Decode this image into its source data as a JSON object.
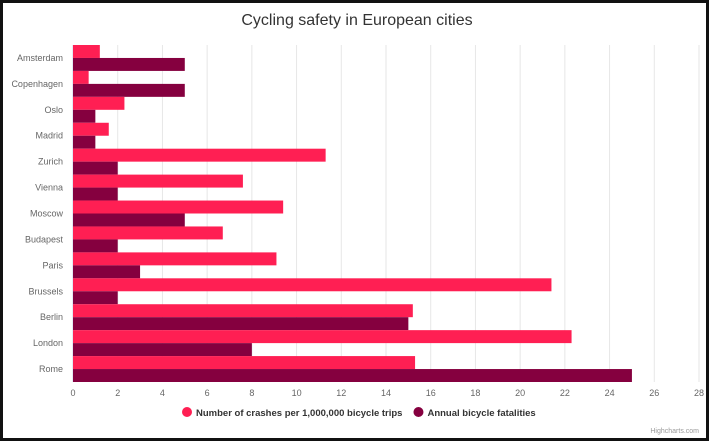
{
  "chart_data": {
    "type": "bar",
    "orientation": "horizontal",
    "title": "Cycling safety in European cities",
    "categories": [
      "Amsterdam",
      "Copenhagen",
      "Oslo",
      "Madrid",
      "Zurich",
      "Vienna",
      "Moscow",
      "Budapest",
      "Paris",
      "Brussels",
      "Berlin",
      "London",
      "Rome"
    ],
    "series": [
      {
        "name": "Number of crashes per 1,000,000 bicycle trips",
        "color": "#ff1f53",
        "values": [
          1.2,
          0.7,
          2.3,
          1.6,
          11.3,
          7.6,
          9.4,
          6.7,
          9.1,
          21.4,
          15.2,
          22.3,
          15.3
        ]
      },
      {
        "name": "Annual bicycle fatalities",
        "color": "#85003f",
        "values": [
          5,
          5,
          1,
          1,
          2,
          2,
          5,
          2,
          3,
          2,
          15,
          8,
          25
        ]
      }
    ],
    "xlim": [
      0,
      28
    ],
    "ticks": [
      "0",
      "2",
      "4",
      "6",
      "8",
      "10",
      "12",
      "14",
      "16",
      "18",
      "20",
      "22",
      "24",
      "26",
      "28"
    ],
    "grid": true,
    "legend_position": "bottom",
    "credit": "Highcharts.com"
  }
}
